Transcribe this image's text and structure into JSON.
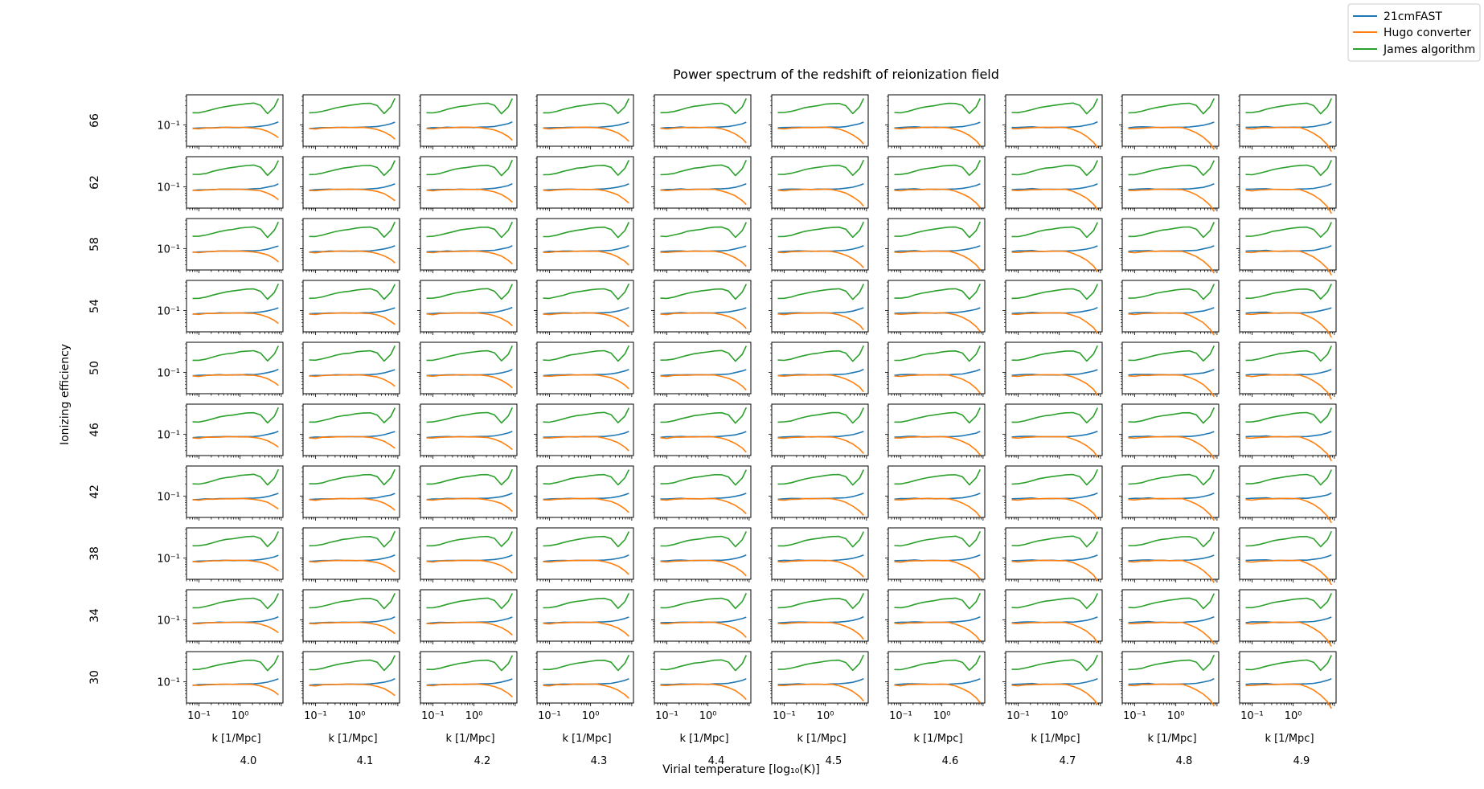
{
  "figure": {
    "title": "Power spectrum of the redshift of reionization field",
    "xlabel_main": "Virial temperature [log₁₀(K)]",
    "ylabel_main": "Ionizing efficiency"
  },
  "legend": {
    "placement": "top-right",
    "entries": [
      {
        "label": "21cmFAST",
        "color": "#1f77b4"
      },
      {
        "label": "Hugo converter",
        "color": "#ff7f0e"
      },
      {
        "label": "James algorithm",
        "color": "#2ca02c"
      }
    ]
  },
  "chart_data": {
    "type": "line",
    "grid": false,
    "x_scale": "log",
    "y_scale": "log",
    "subplot_xlabel": "k [1/Mpc]",
    "x_ticks": [
      "10⁻¹",
      "10⁰"
    ],
    "y_ticks": [
      "10⁻¹"
    ],
    "columns": [
      "4.0",
      "4.1",
      "4.2",
      "4.3",
      "4.4",
      "4.5",
      "4.6",
      "4.7",
      "4.8",
      "4.9"
    ],
    "rows": [
      "66",
      "62",
      "58",
      "54",
      "50",
      "46",
      "42",
      "38",
      "34",
      "30"
    ],
    "k": [
      0.07,
      0.1,
      0.15,
      0.22,
      0.32,
      0.46,
      0.68,
      1.0,
      1.46,
      2.15,
      3.16,
      4.64,
      6.8,
      8.5
    ],
    "series": [
      {
        "name": "21cmFAST",
        "color": "#1f77b4",
        "values": [
          0.082,
          0.084,
          0.085,
          0.086,
          0.087,
          0.087,
          0.087,
          0.087,
          0.088,
          0.089,
          0.092,
          0.098,
          0.108,
          0.118
        ]
      },
      {
        "name": "Hugo converter",
        "color": "#ff7f0e",
        "values": [
          0.082,
          0.08,
          0.084,
          0.085,
          0.086,
          0.087,
          0.087,
          0.087,
          0.086,
          0.084,
          0.079,
          0.07,
          0.057,
          0.048
        ]
      },
      {
        "name": "James algorithm",
        "color": "#2ca02c",
        "values": [
          0.2,
          0.2,
          0.215,
          0.24,
          0.265,
          0.285,
          0.3,
          0.32,
          0.335,
          0.34,
          0.3,
          0.19,
          0.28,
          0.45
        ]
      }
    ]
  }
}
